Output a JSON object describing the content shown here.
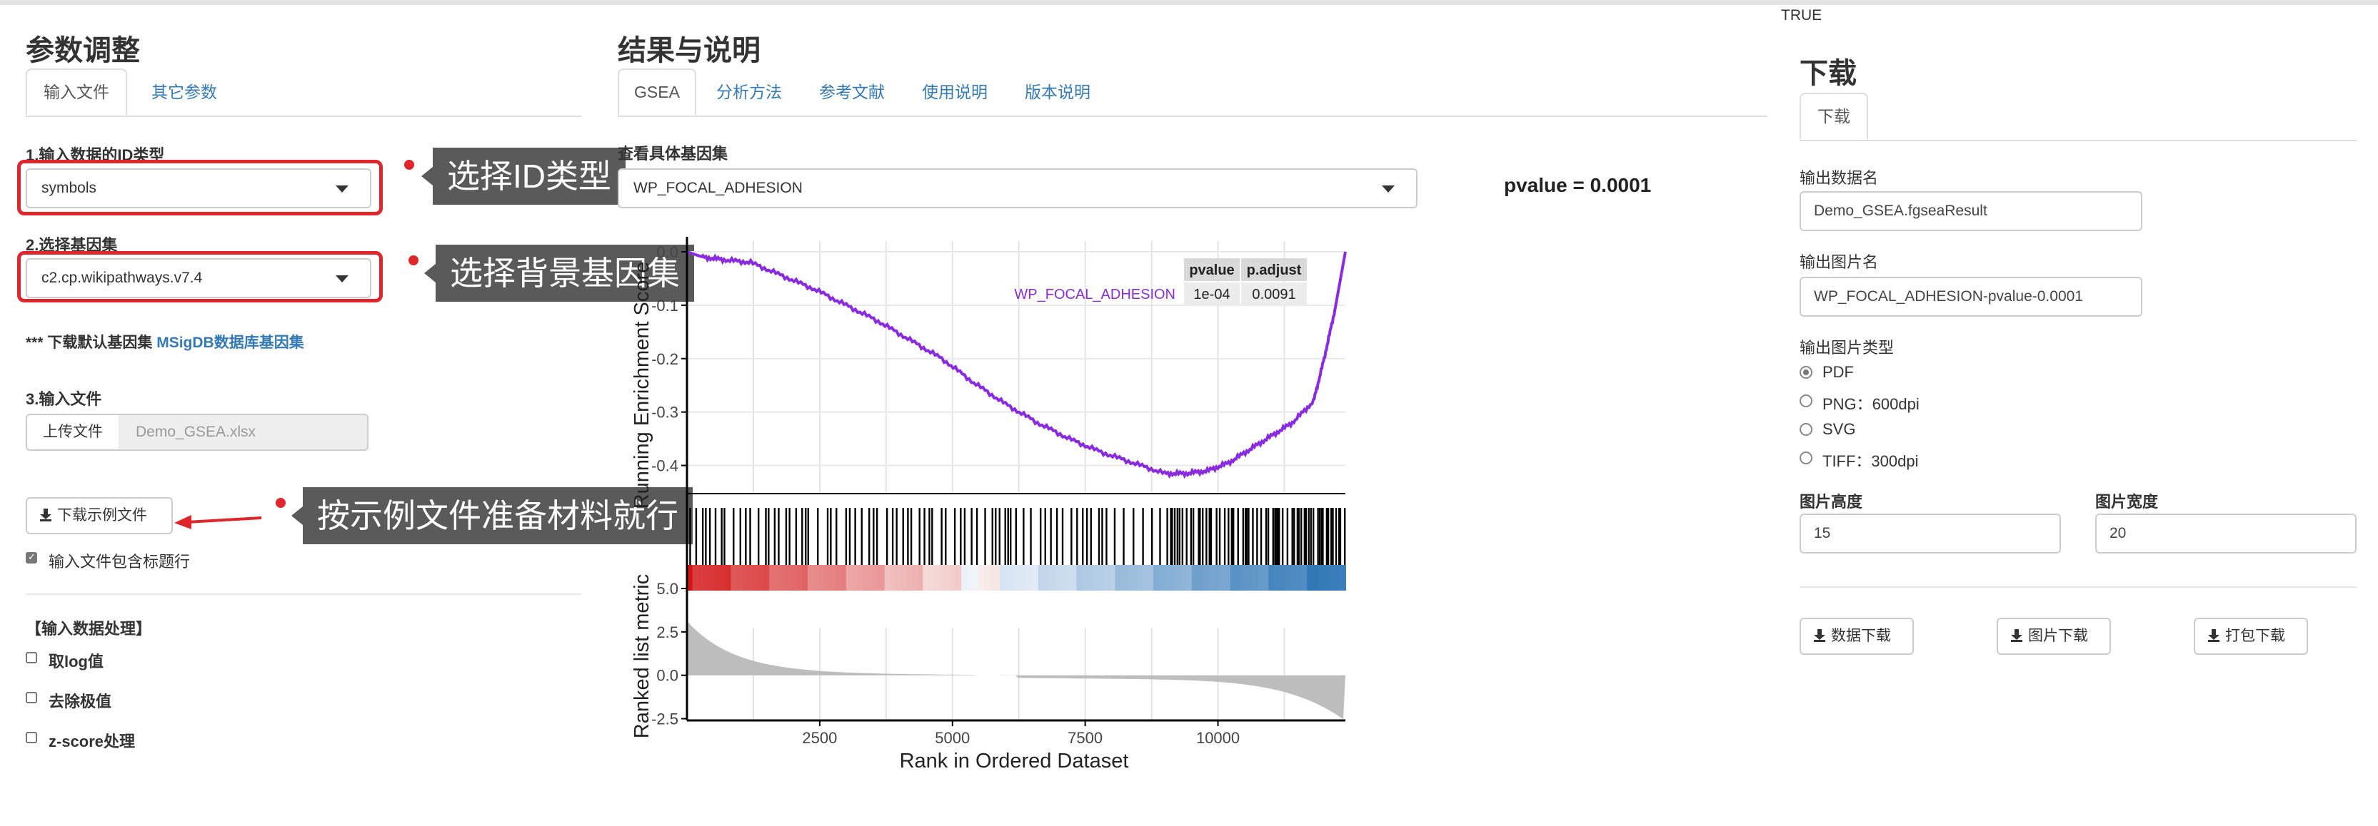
{
  "true_label": "TRUE",
  "left": {
    "title": "参数调整",
    "tabs": [
      "输入文件",
      "其它参数"
    ],
    "id_type_label": "1.输入数据的ID类型",
    "id_type_value": "symbols",
    "gene_set_label": "2.选择基因集",
    "gene_set_value": "c2.cp.wikipathways.v7.4",
    "download_note_prefix": "*** 下载默认基因集",
    "download_note_link": "MSigDB数据库基因集",
    "input_file_label": "3.输入文件",
    "upload_button": "上传文件",
    "upload_filename": "Demo_GSEA.xlsx",
    "example_button": "下载示例文件",
    "header_checkbox": "输入文件包含标题行",
    "processing_title": "【输入数据处理】",
    "processing_options": [
      "取log值",
      "去除极值",
      "z-score处理"
    ]
  },
  "callouts": {
    "id_type": "选择ID类型",
    "gene_set": "选择背景基因集",
    "example": "按示例文件准备材料就行"
  },
  "middle": {
    "title": "结果与说明",
    "tabs": [
      "GSEA",
      "分析方法",
      "参考文献",
      "使用说明",
      "版本说明"
    ],
    "view_label": "查看具体基因集",
    "view_value": "WP_FOCAL_ADHESION",
    "pvalue_text": "pvalue = 0.0001"
  },
  "chart_data": {
    "type": "line",
    "title": "",
    "xlabel": "Rank in Ordered Dataset",
    "ylabel": "Running Enrichment Score",
    "ylabel2": "Ranked list metric",
    "xlim": [
      0,
      12400
    ],
    "ylim": [
      -0.45,
      0.02
    ],
    "ylim2": [
      -2.6,
      5.0
    ],
    "x_ticks": [
      2500,
      5000,
      7500,
      10000
    ],
    "y_ticks": [
      0.0,
      -0.1,
      -0.2,
      -0.3,
      -0.4
    ],
    "y_tick_labels": [
      "0.0",
      "-0.1",
      "-0.2",
      "-0.3",
      "-0.4"
    ],
    "y2_ticks": [
      5.0,
      2.5,
      0.0,
      -2.5
    ],
    "y2_tick_labels": [
      "5.0",
      "2.5",
      "0.0",
      "-2.5"
    ],
    "series": [
      {
        "name": "WP_FOCAL_ADHESION",
        "color": "#8a2be2",
        "x": [
          0,
          300,
          700,
          1200,
          1800,
          2400,
          3000,
          3600,
          4200,
          4800,
          5400,
          6000,
          6600,
          7200,
          7800,
          8400,
          9000,
          9400,
          9800,
          10200,
          10600,
          11000,
          11400,
          11800,
          12000,
          12200,
          12400
        ],
        "y": [
          0.0,
          -0.01,
          -0.015,
          -0.02,
          -0.045,
          -0.07,
          -0.1,
          -0.13,
          -0.165,
          -0.2,
          -0.245,
          -0.285,
          -0.32,
          -0.35,
          -0.375,
          -0.395,
          -0.415,
          -0.415,
          -0.41,
          -0.395,
          -0.37,
          -0.345,
          -0.32,
          -0.28,
          -0.2,
          -0.11,
          0.0
        ]
      }
    ],
    "table": {
      "headers": [
        "pvalue",
        "p.adjust"
      ],
      "row_label": "WP_FOCAL_ADHESION",
      "row": [
        "1e-04",
        "0.0091"
      ]
    },
    "grid": true,
    "legend": "top-right",
    "colors": {
      "line": "#8a2be2",
      "bar_low": "#d62728",
      "bar_high": "#2b74b4",
      "metric": "#bdbdbd"
    }
  },
  "right": {
    "title": "下载",
    "tab": "下载",
    "data_name_label": "输出数据名",
    "data_name_value": "Demo_GSEA.fgseaResult",
    "image_name_label": "输出图片名",
    "image_name_value": "WP_FOCAL_ADHESION-pvalue-0.0001",
    "image_type_label": "输出图片类型",
    "image_types": [
      "PDF",
      "PNG：600dpi",
      "SVG",
      "TIFF：300dpi"
    ],
    "image_type_selected": 0,
    "height_label": "图片高度",
    "height_value": "15",
    "width_label": "图片宽度",
    "width_value": "20",
    "buttons": [
      "数据下载",
      "图片下载",
      "打包下载"
    ]
  }
}
